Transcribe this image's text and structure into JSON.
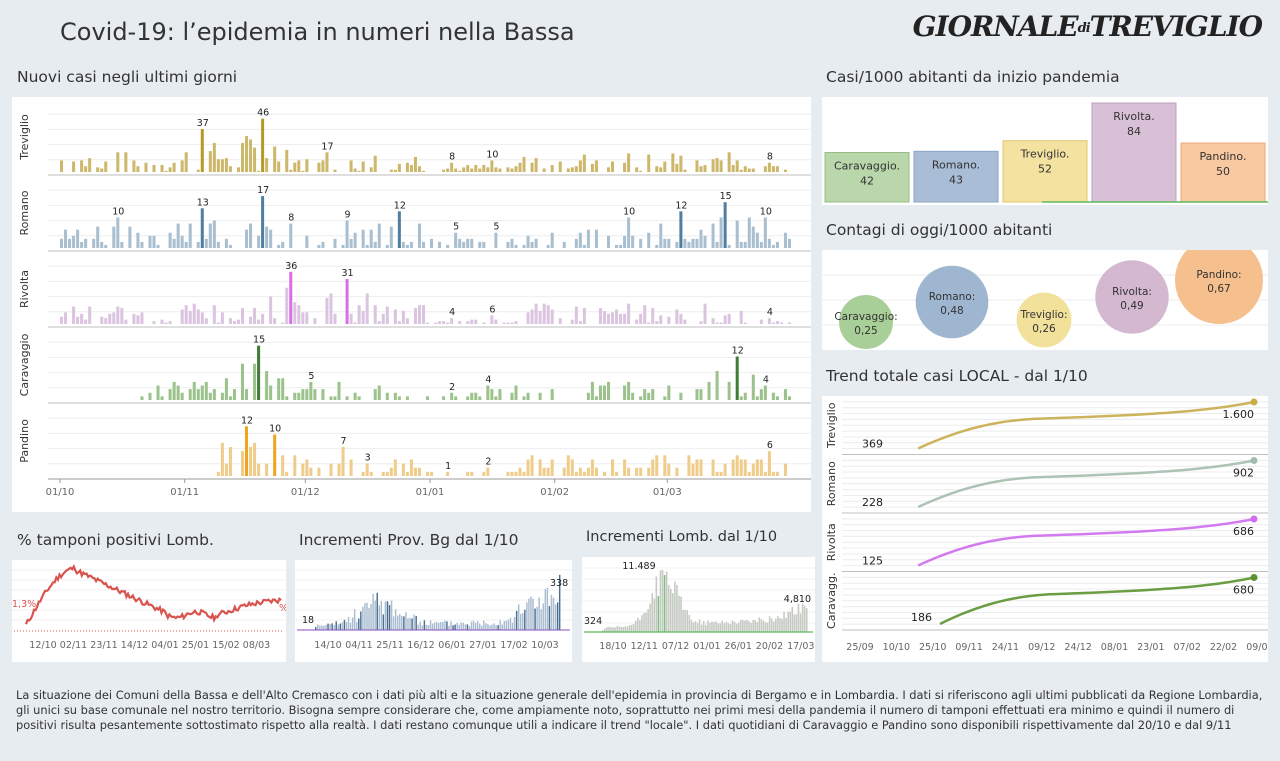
{
  "header": {
    "title": "Covid-19: l’epidemia  in numeri nella Bassa",
    "logo_main": "GIORNALE",
    "logo_di": "di",
    "logo_city": "TREVIGLIO"
  },
  "sections": {
    "new_cases": "Nuovi casi negli ultimi   giorni",
    "per1000": "Casi/1000 abitanti da inizio pandemia",
    "today": "Contagi di oggi/1000 abitanti",
    "trend": "Trend totale casi  LOCAL - dal 1/10",
    "tamponi": "% tamponi positivi Lomb.",
    "bg": "Incrementi Prov. Bg dal 1/10",
    "lomb": "Incrementi Lomb. dal 1/10"
  },
  "footer_text": "La situazione dei Comuni della Bassa e dell'Alto Cremasco con i dati più alti e la situazione generale dell'epidemia in provincia di Bergamo e in Lombardia.  I dati si riferiscono agli ultimi pubblicati da Regione Lombardia, gli unici su base comunale nel  nostro territorio.  Bisogna sempre considerare che, come ampiamente noto, soprattutto nei primi mesi della pandemia il numero di tamponi effettuati era minimo e quindi il numero di positivi risulta pesantemente sottostimato rispetto alla realtà. I dati restano comunque utili a indicare il trend \"locale\".  I dati quotidiani di Caravaggio e Pandino sono disponibili rispettivamente dal 20/10 e dal 9/11",
  "chart_data": [
    {
      "id": "new_cases",
      "type": "bar",
      "x_ticks": [
        "01/10",
        "01/11",
        "01/12",
        "01/01",
        "01/02",
        "01/03"
      ],
      "series": [
        {
          "name": "Treviglio",
          "color": "#cdb76b",
          "highlight": "#b59a25",
          "scale_max": 50,
          "labels": [
            {
              "day": 35,
              "value": 37
            },
            {
              "day": 50,
              "value": 46
            },
            {
              "day": 66,
              "value": 17
            },
            {
              "day": 97,
              "value": 8
            },
            {
              "day": 107,
              "value": 10
            },
            {
              "day": 176,
              "value": 8
            }
          ]
        },
        {
          "name": "Romano",
          "color": "#a9bfcf",
          "highlight": "#4e7fa0",
          "scale_max": 19,
          "labels": [
            {
              "day": 14,
              "value": 10
            },
            {
              "day": 35,
              "value": 13
            },
            {
              "day": 50,
              "value": 17
            },
            {
              "day": 57,
              "value": 8
            },
            {
              "day": 71,
              "value": 9
            },
            {
              "day": 84,
              "value": 12
            },
            {
              "day": 98,
              "value": 5
            },
            {
              "day": 108,
              "value": 5
            },
            {
              "day": 141,
              "value": 10
            },
            {
              "day": 154,
              "value": 12
            },
            {
              "day": 165,
              "value": 15
            },
            {
              "day": 175,
              "value": 10
            }
          ]
        },
        {
          "name": "Rivolta",
          "color": "#dbc4e0",
          "highlight": "#d96ee8",
          "scale_max": 40,
          "labels": [
            {
              "day": 57,
              "value": 36
            },
            {
              "day": 71,
              "value": 31
            },
            {
              "day": 97,
              "value": 4
            },
            {
              "day": 107,
              "value": 6
            },
            {
              "day": 176,
              "value": 4
            }
          ]
        },
        {
          "name": "Caravaggio",
          "color": "#9cc28c",
          "highlight": "#3f7d36",
          "start_day": 19,
          "scale_max": 16,
          "labels": [
            {
              "day": 49,
              "value": 15
            },
            {
              "day": 62,
              "value": 5
            },
            {
              "day": 97,
              "value": 2
            },
            {
              "day": 106,
              "value": 4
            },
            {
              "day": 168,
              "value": 12
            },
            {
              "day": 175,
              "value": 4
            }
          ]
        },
        {
          "name": "Pandino",
          "color": "#f0cc8a",
          "highlight": "#f0a41f",
          "start_day": 39,
          "scale_max": 14,
          "labels": [
            {
              "day": 46,
              "value": 12
            },
            {
              "day": 53,
              "value": 10
            },
            {
              "day": 70,
              "value": 7
            },
            {
              "day": 76,
              "value": 3
            },
            {
              "day": 96,
              "value": 1
            },
            {
              "day": 106,
              "value": 2
            },
            {
              "day": 176,
              "value": 6
            }
          ]
        }
      ]
    },
    {
      "id": "per1000",
      "type": "bar",
      "title": "Casi/1000 abitanti da inizio pandemia",
      "categories": [
        "Caravaggio.",
        "Romano.",
        "Treviglio.",
        "Rivolta.",
        "Pandino."
      ],
      "values": [
        42,
        43,
        52,
        84,
        50
      ],
      "colors": [
        "#b9d7aa",
        "#a9bdd6",
        "#f3e2a0",
        "#d8c0d6",
        "#f8c8a0"
      ],
      "borders": [
        "#96be84",
        "#8aa6c6",
        "#dcc870",
        "#bea0bc",
        "#eda878"
      ],
      "ylim": [
        0,
        84
      ]
    },
    {
      "id": "today",
      "type": "scatter",
      "title": "Contagi di oggi/1000 abitanti",
      "categories": [
        "Caravaggio:",
        "Romano:",
        "Treviglio:",
        "Rivolta:",
        "Pandino:"
      ],
      "values": [
        "0,25",
        "0,48",
        "0,26",
        "0,49",
        "0,67"
      ],
      "numeric": [
        0.25,
        0.48,
        0.26,
        0.49,
        0.67
      ],
      "colors": [
        "#a9cf98",
        "#9fb6d0",
        "#f1e19b",
        "#d3b8d0",
        "#f6bf8e"
      ]
    },
    {
      "id": "trend",
      "type": "line",
      "title": "Trend totale casi  LOCAL - dal 1/10",
      "x_ticks": [
        "25/09",
        "10/10",
        "25/10",
        "09/11",
        "24/11",
        "09/12",
        "24/12",
        "08/01",
        "23/01",
        "07/02",
        "22/02",
        "09/03"
      ],
      "series": [
        {
          "name": "Treviglio",
          "start": 369,
          "end": 1600,
          "start_label": "369",
          "end_label": "1.600",
          "color": "#c8ac4a"
        },
        {
          "name": "Romano",
          "start": 228,
          "end": 902,
          "start_label": "228",
          "end_label": "902",
          "color": "#a4bcae"
        },
        {
          "name": "Rivolta",
          "start": 125,
          "end": 686,
          "start_label": "125",
          "end_label": "686",
          "color": "#cf6cf0"
        },
        {
          "name": "Caravagg.",
          "start": 186,
          "end": 680,
          "start_label": "186",
          "end_label": "680",
          "color": "#5b922f"
        }
      ]
    },
    {
      "id": "tamponi",
      "type": "line",
      "title": "% tamponi positivi Lomb.",
      "x_ticks": [
        "12/10",
        "02/11",
        "23/11",
        "14/12",
        "04/01",
        "25/01",
        "15/02",
        "08/03"
      ],
      "start_label": "1,3%",
      "end_label": "%",
      "color": "#d9534f"
    },
    {
      "id": "bg",
      "type": "bar",
      "title": "Incrementi Prov. Bg dal 1/10",
      "x_ticks": [
        "14/10",
        "04/11",
        "25/11",
        "16/12",
        "06/01",
        "27/01",
        "17/02",
        "10/03"
      ],
      "start_label": "18",
      "end_label": "338",
      "color": "#a9bcd0",
      "highlight": "#4a6f93",
      "ylim": [
        0,
        380
      ]
    },
    {
      "id": "lomb",
      "type": "bar",
      "title": "Incrementi Lomb. dal 1/10",
      "x_ticks": [
        "18/10",
        "12/11",
        "07/12",
        "01/01",
        "26/01",
        "20/02",
        "17/03"
      ],
      "start_label": "324",
      "peak_label": "11.489",
      "end_label": "4,810",
      "color": "#c4c9c2",
      "highlight": "#7fbf7f",
      "ylim": [
        0,
        12500
      ]
    }
  ]
}
